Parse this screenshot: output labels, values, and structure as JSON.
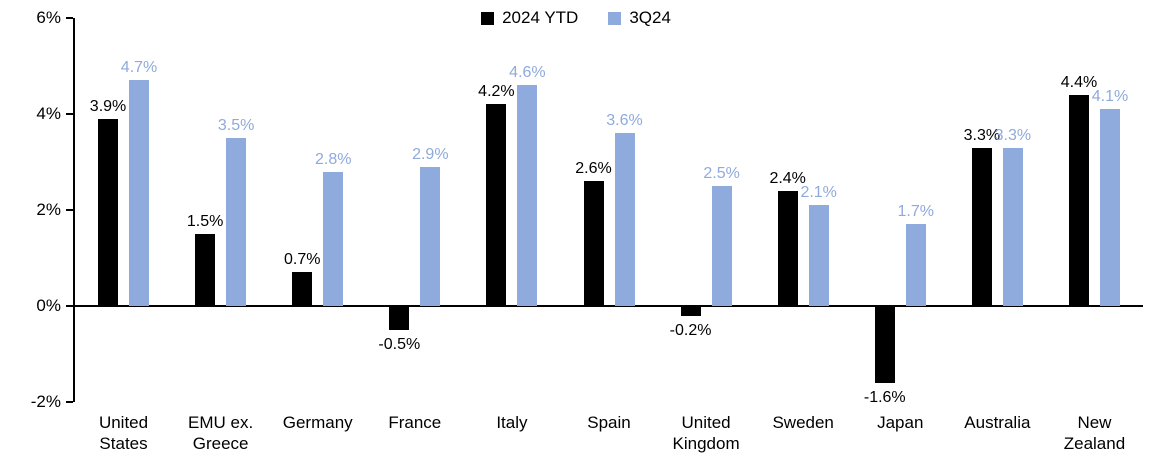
{
  "chart_data": {
    "type": "bar",
    "categories": [
      "United States",
      "EMU ex. Greece",
      "Germany",
      "France",
      "Italy",
      "Spain",
      "United Kingdom",
      "Sweden",
      "Japan",
      "Australia",
      "New Zealand"
    ],
    "series": [
      {
        "name": "2024 YTD",
        "color": "#000000",
        "values": [
          3.9,
          1.5,
          0.7,
          -0.5,
          4.2,
          2.6,
          -0.2,
          2.4,
          -1.6,
          3.3,
          4.4
        ]
      },
      {
        "name": "3Q24",
        "color": "#8FAADC",
        "values": [
          4.7,
          3.5,
          2.8,
          2.9,
          4.6,
          3.6,
          2.5,
          2.1,
          1.7,
          3.3,
          4.1
        ]
      }
    ],
    "ylim": [
      -2,
      6
    ],
    "yticks": [
      -2,
      0,
      2,
      4,
      6
    ],
    "ytick_labels": [
      "-2%",
      "0%",
      "2%",
      "4%",
      "6%"
    ],
    "value_label_suffix": "%",
    "legend_position": "top",
    "grid": false,
    "title": "",
    "xlabel": "",
    "ylabel": ""
  }
}
